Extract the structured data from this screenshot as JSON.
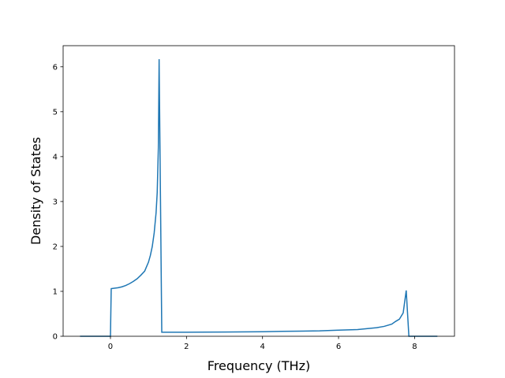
{
  "chart_data": {
    "type": "line",
    "x_label": "Frequency (THz)",
    "y_label": "Density of States",
    "x": [
      -0.8,
      0.0,
      0.02,
      0.1,
      0.2,
      0.3,
      0.4,
      0.5,
      0.6,
      0.7,
      0.8,
      0.9,
      0.95,
      1.0,
      1.05,
      1.1,
      1.15,
      1.2,
      1.23,
      1.26,
      1.28,
      1.35,
      2,
      3,
      4,
      4.5,
      5,
      5.5,
      6,
      6.5,
      7,
      7.2,
      7.4,
      7.5,
      7.6,
      7.7,
      7.78,
      7.85,
      8.6
    ],
    "series": [
      {
        "color": "#1f77b4",
        "values": [
          0,
          0,
          1.06,
          1.07,
          1.08,
          1.1,
          1.13,
          1.17,
          1.22,
          1.28,
          1.36,
          1.45,
          1.55,
          1.65,
          1.8,
          2.0,
          2.3,
          2.75,
          3.2,
          4.2,
          6.17,
          0.09,
          0.09,
          0.095,
          0.1,
          0.11,
          0.115,
          0.12,
          0.135,
          0.15,
          0.19,
          0.22,
          0.27,
          0.33,
          0.38,
          0.52,
          1.02,
          0,
          0
        ]
      }
    ],
    "xlim": [
      -1.245,
      9.05
    ],
    "ylim": [
      0,
      6.47
    ],
    "xticks": [
      0,
      2,
      4,
      6,
      8
    ],
    "yticks": [
      0,
      1,
      2,
      3,
      4,
      5,
      6
    ]
  }
}
